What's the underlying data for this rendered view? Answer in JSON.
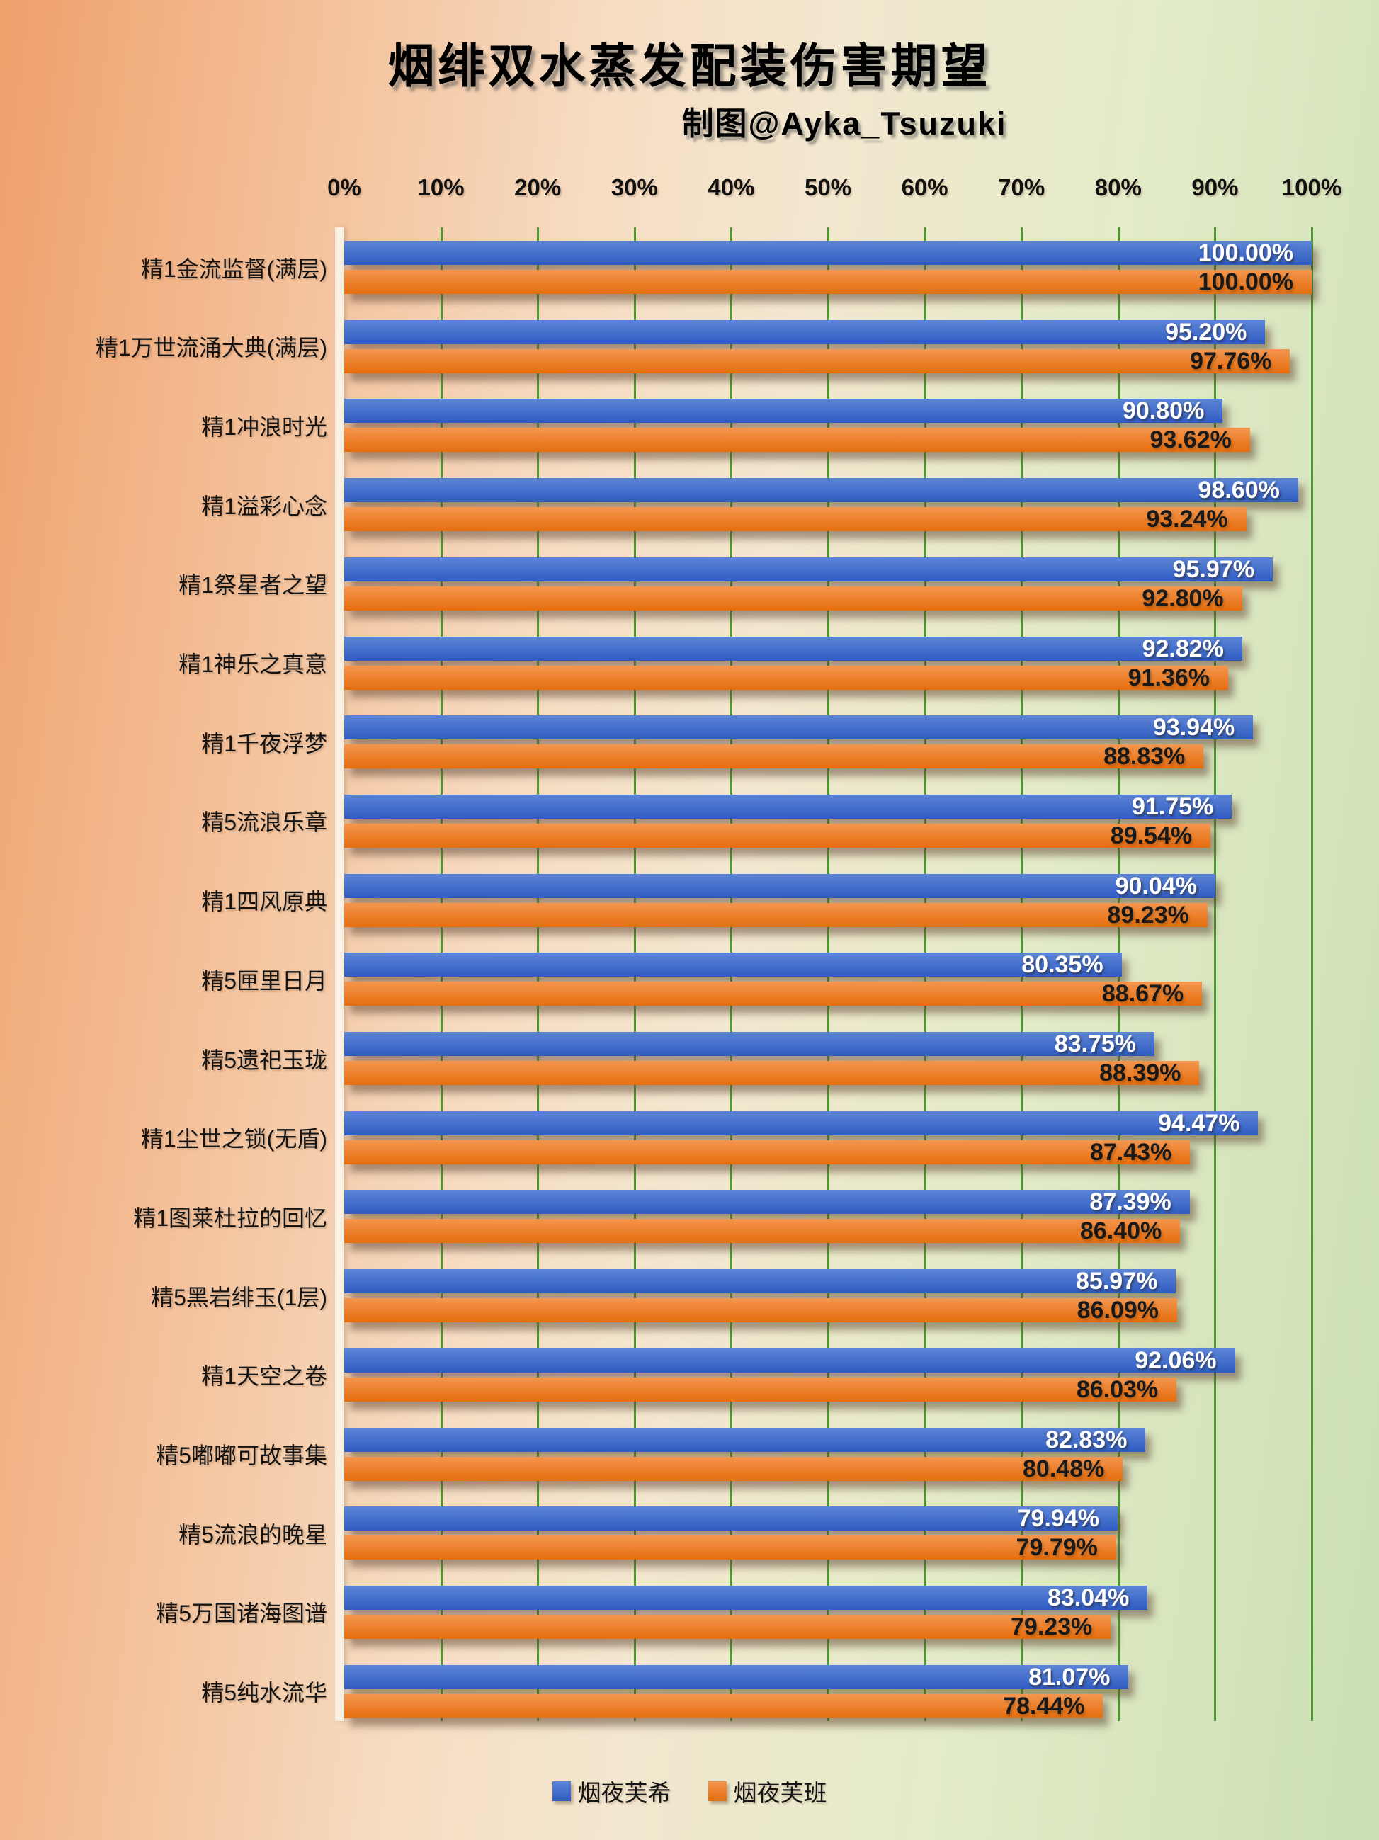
{
  "title": "烟绯双水蒸发配装伤害期望",
  "subtitle": "制图@Ayka_Tsuzuki",
  "x_axis": {
    "tick_labels": [
      "0%",
      "10%",
      "20%",
      "30%",
      "40%",
      "50%",
      "60%",
      "70%",
      "80%",
      "90%",
      "100%"
    ]
  },
  "legend": {
    "items": [
      {
        "label": "烟夜芙希",
        "color": "#4472c4"
      },
      {
        "label": "烟夜芙班",
        "color": "#ed7d31"
      }
    ]
  },
  "chart_data": {
    "type": "bar",
    "orientation": "horizontal",
    "title": "烟绯双水蒸发配装伤害期望",
    "subtitle": "制图@Ayka_Tsuzuki",
    "xlabel": "",
    "ylabel": "",
    "xlim": [
      0,
      100
    ],
    "x_tick_step": 10,
    "grid": true,
    "gridline_color": "#4c9a2f",
    "legend_position": "bottom",
    "value_label_format": "0.00%",
    "categories": [
      "精1金流监督(满层)",
      "精1万世流涌大典(满层)",
      "精1冲浪时光",
      "精1溢彩心念",
      "精1祭星者之望",
      "精1神乐之真意",
      "精1千夜浮梦",
      "精5流浪乐章",
      "精1四风原典",
      "精5匣里日月",
      "精5遗祀玉珑",
      "精1尘世之锁(无盾)",
      "精1图莱杜拉的回忆",
      "精5黑岩绯玉(1层)",
      "精1天空之卷",
      "精5嘟嘟可故事集",
      "精5流浪的晚星",
      "精5万国诸海图谱",
      "精5纯水流华"
    ],
    "series": [
      {
        "name": "烟夜芙希",
        "color": "#4472c4",
        "values": [
          100.0,
          95.2,
          90.8,
          98.6,
          95.97,
          92.82,
          93.94,
          91.75,
          90.04,
          80.35,
          83.75,
          94.47,
          87.39,
          85.97,
          92.06,
          82.83,
          79.94,
          83.04,
          81.07
        ]
      },
      {
        "name": "烟夜芙班",
        "color": "#ed7d31",
        "values": [
          100.0,
          97.76,
          93.62,
          93.24,
          92.8,
          91.36,
          88.83,
          89.54,
          89.23,
          88.67,
          88.39,
          87.43,
          86.4,
          86.09,
          86.03,
          80.48,
          79.79,
          79.23,
          78.44
        ]
      }
    ]
  }
}
